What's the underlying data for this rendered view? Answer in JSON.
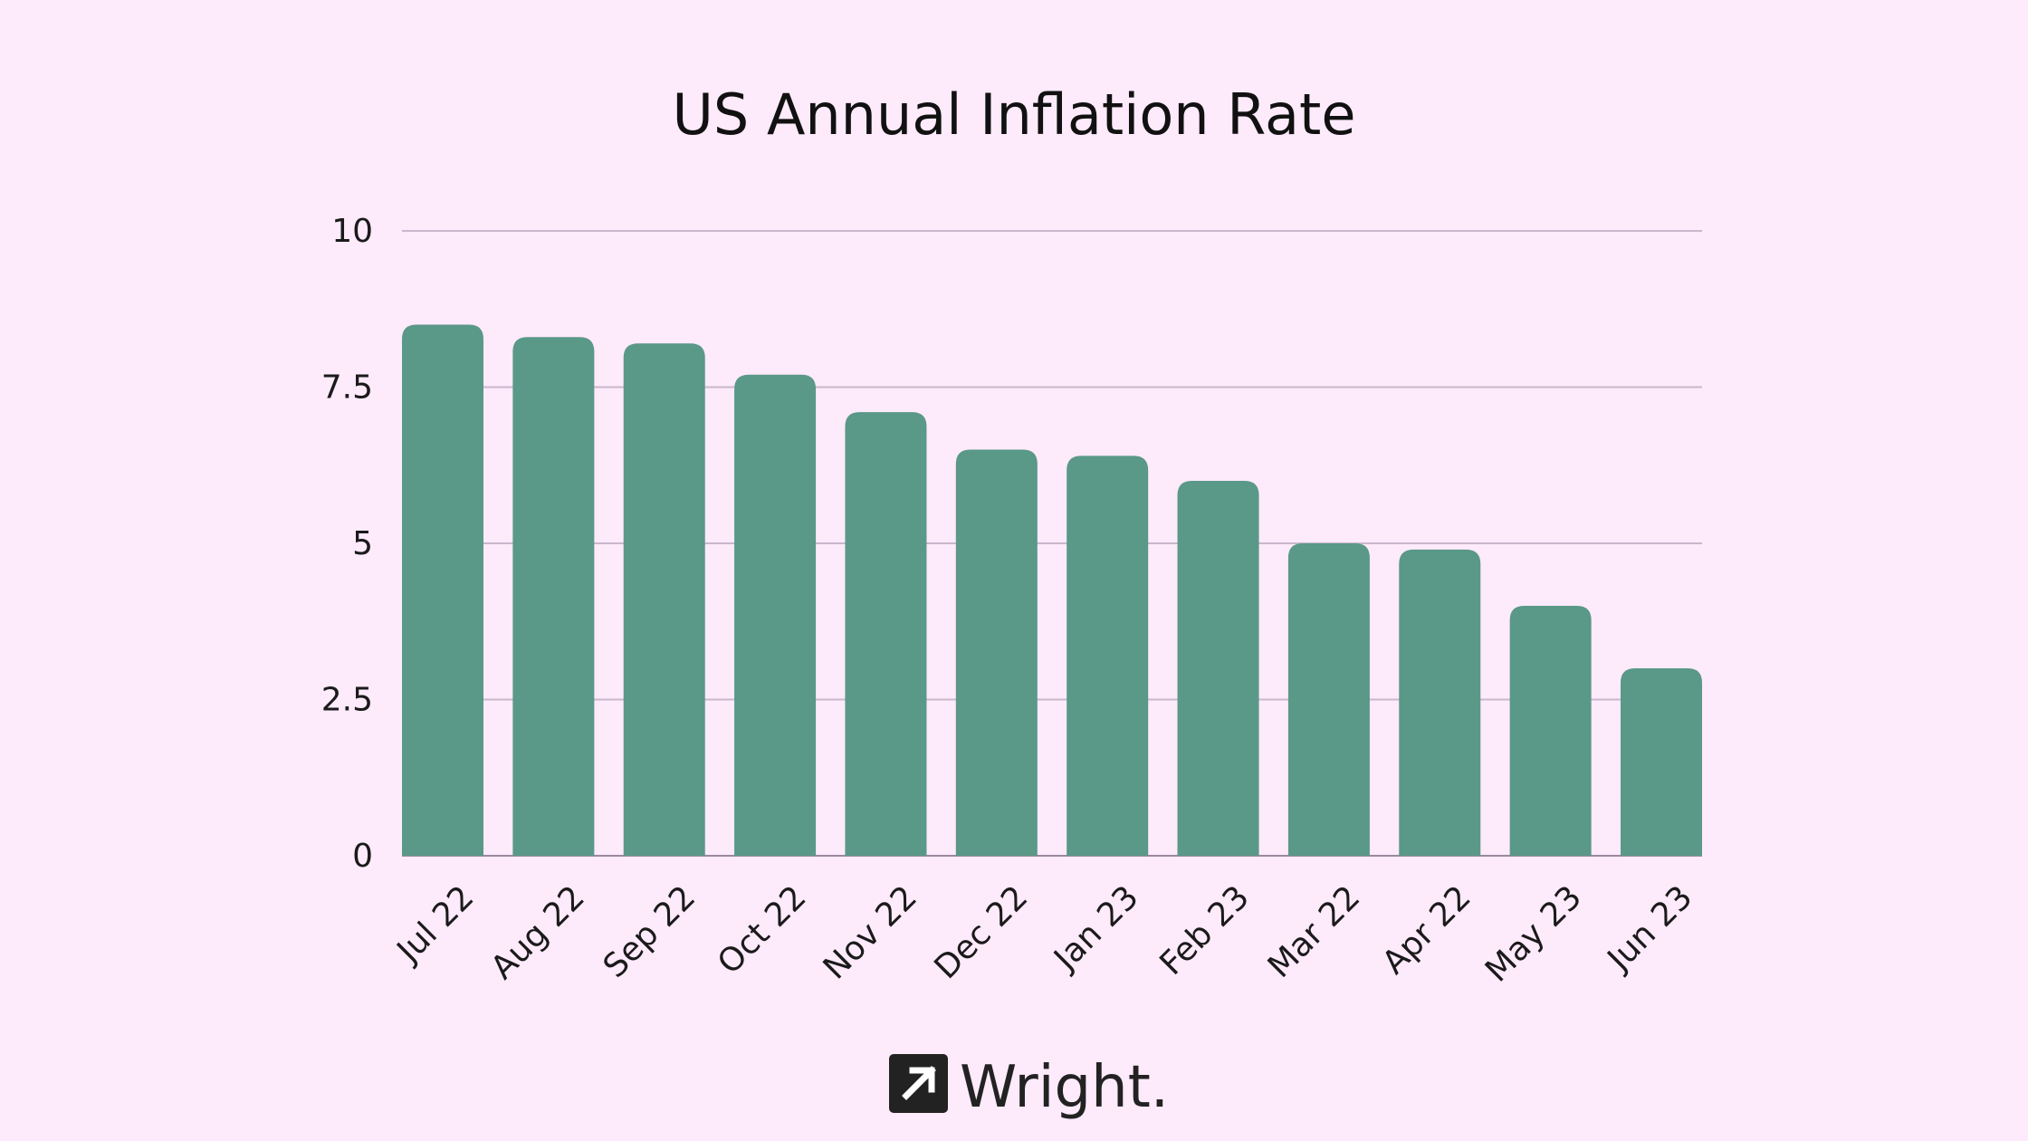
{
  "chart_data": {
    "type": "bar",
    "title": "US Annual Inflation Rate",
    "xlabel": "",
    "ylabel": "",
    "categories": [
      "Jul 22",
      "Aug 22",
      "Sep 22",
      "Oct 22",
      "Nov 22",
      "Dec 22",
      "Jan 23",
      "Feb 23",
      "Mar 22",
      "Apr 22",
      "May 23",
      "Jun 23"
    ],
    "values": [
      8.5,
      8.3,
      8.2,
      7.7,
      7.1,
      6.5,
      6.4,
      6.0,
      5.0,
      4.9,
      4.0,
      3.0
    ],
    "ylim": [
      0,
      10
    ],
    "yticks": [
      "0",
      "2.5",
      "5",
      "7.5",
      "10"
    ],
    "grid": true,
    "legend": "none",
    "bar_color": "#5a9888",
    "grid_color": "#c9b8cc"
  },
  "brand": {
    "name": "Wright.",
    "icon": "arrow-up-right-icon",
    "icon_bg": "#222222"
  }
}
